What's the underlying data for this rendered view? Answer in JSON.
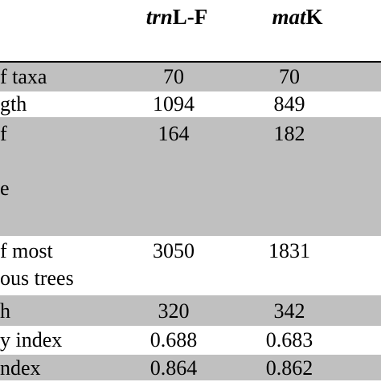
{
  "header": {
    "col1_italic": "trn",
    "col1_rest": "L-F",
    "col2_italic": "mat",
    "col2_rest": "K"
  },
  "rows": [
    {
      "label": "f taxa",
      "v1": "70",
      "v2": "70",
      "shaded": true
    },
    {
      "label": "gth",
      "v1": "1094",
      "v2": "849",
      "shaded": false
    },
    {
      "label": "f\n\ne",
      "v1": "164",
      "v2": "182",
      "shaded": true
    },
    {
      "label": "f most\nous trees",
      "v1": "3050",
      "v2": "1831",
      "shaded": false
    },
    {
      "label": "h",
      "v1": "320",
      "v2": "342",
      "shaded": true
    },
    {
      "label": "y index",
      "v1": "0.688",
      "v2": "0.683",
      "shaded": false
    },
    {
      "label": "ndex",
      "v1": "0.864",
      "v2": "0.862",
      "shaded": true
    }
  ]
}
